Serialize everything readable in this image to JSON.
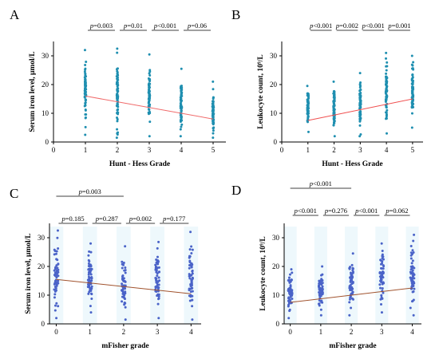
{
  "colors": {
    "A": "#1f8fb0",
    "B": "#1f8fb0",
    "C": "#4a63c8",
    "D": "#4a63c8",
    "fit_A": "#f06a6a",
    "fit_B": "#f05050",
    "fit_C": "#a0522d",
    "fit_D": "#a0522d",
    "band": "#cdeaf7"
  },
  "chart_data": [
    {
      "panel": "A",
      "type": "scatter",
      "xlabel": "Hunt - Hess Grade",
      "ylabel": "Serum iron level, μmol/L",
      "xlim": [
        0,
        5.4
      ],
      "ylim": [
        0,
        35
      ],
      "xticks": [
        "0",
        "1",
        "2",
        "3",
        "4",
        "5"
      ],
      "yticks": [
        "0",
        "10",
        "20",
        "30"
      ],
      "categories": [
        1,
        2,
        3,
        4,
        5
      ],
      "ranges": [
        [
          2.5,
          32
        ],
        [
          1.5,
          32.5
        ],
        [
          2,
          30.5
        ],
        [
          2,
          25.5
        ],
        [
          1.5,
          21
        ]
      ],
      "fit": [
        [
          1,
          16
        ],
        [
          5,
          8
        ]
      ],
      "pvalues": [
        {
          "text": "=0.003",
          "from": 1,
          "to": 2,
          "level": 1
        },
        {
          "text": "=0.01",
          "from": 2,
          "to": 3,
          "level": 1
        },
        {
          "text": "<0.001",
          "from": 3,
          "to": 4,
          "level": 1
        },
        {
          "text": "=0.06",
          "from": 4,
          "to": 5,
          "level": 1
        }
      ]
    },
    {
      "panel": "B",
      "type": "scatter",
      "xlabel": "Hunt - Hess Grade",
      "ylabel": "Leukocyte count, 10⁹/L",
      "xlim": [
        0,
        5.4
      ],
      "ylim": [
        0,
        35
      ],
      "xticks": [
        "0",
        "1",
        "2",
        "3",
        "4",
        "5"
      ],
      "yticks": [
        "0",
        "10",
        "20",
        "30"
      ],
      "categories": [
        1,
        2,
        3,
        4,
        5
      ],
      "ranges": [
        [
          3.5,
          19.5
        ],
        [
          2,
          21
        ],
        [
          2,
          24
        ],
        [
          3,
          31
        ],
        [
          5,
          30
        ]
      ],
      "fit": [
        [
          1,
          7.5
        ],
        [
          5,
          15
        ]
      ],
      "pvalues": [
        {
          "text": "<0.001",
          "from": 1,
          "to": 2,
          "level": 1
        },
        {
          "text": "=0.002",
          "from": 2,
          "to": 3,
          "level": 1
        },
        {
          "text": "<0.001",
          "from": 3,
          "to": 4,
          "level": 1
        },
        {
          "text": "=0.001",
          "from": 4,
          "to": 5,
          "level": 1
        }
      ]
    },
    {
      "panel": "C",
      "type": "scatter",
      "xlabel": "mFisher grade",
      "ylabel": "Serum iron level, μmol/L",
      "xlim": [
        -0.2,
        4.3
      ],
      "ylim": [
        0,
        35
      ],
      "xticks": [
        "0",
        "1",
        "2",
        "3",
        "4"
      ],
      "yticks": [
        "0",
        "10",
        "20",
        "30"
      ],
      "categories": [
        0,
        1,
        2,
        3,
        4
      ],
      "ranges": [
        [
          2,
          32.5
        ],
        [
          4,
          28
        ],
        [
          1.5,
          27
        ],
        [
          2,
          28.5
        ],
        [
          1.5,
          32
        ]
      ],
      "fit": [
        [
          0,
          15.5
        ],
        [
          4,
          10.5
        ]
      ],
      "pvalues": [
        {
          "text": "=0.003",
          "from": 0,
          "to": 2,
          "level": 2
        },
        {
          "text": "=0.185",
          "from": 0,
          "to": 1,
          "level": 1
        },
        {
          "text": "=0.287",
          "from": 1,
          "to": 2,
          "level": 1
        },
        {
          "text": "=0.002",
          "from": 2,
          "to": 3,
          "level": 1
        },
        {
          "text": "=0.177",
          "from": 3,
          "to": 4,
          "level": 1
        }
      ]
    },
    {
      "panel": "D",
      "type": "scatter",
      "xlabel": "mFisher grade",
      "ylabel": "Leukocyte count, 10⁹/L",
      "xlim": [
        -0.2,
        4.3
      ],
      "ylim": [
        0,
        35
      ],
      "xticks": [
        "0",
        "1",
        "2",
        "3",
        "4"
      ],
      "yticks": [
        "0",
        "10",
        "20",
        "30"
      ],
      "categories": [
        0,
        1,
        2,
        3,
        4
      ],
      "ranges": [
        [
          2,
          19
        ],
        [
          3,
          20
        ],
        [
          3,
          24.5
        ],
        [
          4,
          28
        ],
        [
          3,
          31
        ]
      ],
      "fit": [
        [
          0,
          7.5
        ],
        [
          4,
          12.5
        ]
      ],
      "pvalues": [
        {
          "text": "<0.001",
          "from": 0,
          "to": 2,
          "level": 2
        },
        {
          "text": "<0.001",
          "from": 0,
          "to": 1,
          "level": 1
        },
        {
          "text": "=0.276",
          "from": 1,
          "to": 2,
          "level": 1
        },
        {
          "text": "<0.001",
          "from": 2,
          "to": 3,
          "level": 1
        },
        {
          "text": "=0.062",
          "from": 3,
          "to": 4,
          "level": 1
        }
      ]
    }
  ]
}
